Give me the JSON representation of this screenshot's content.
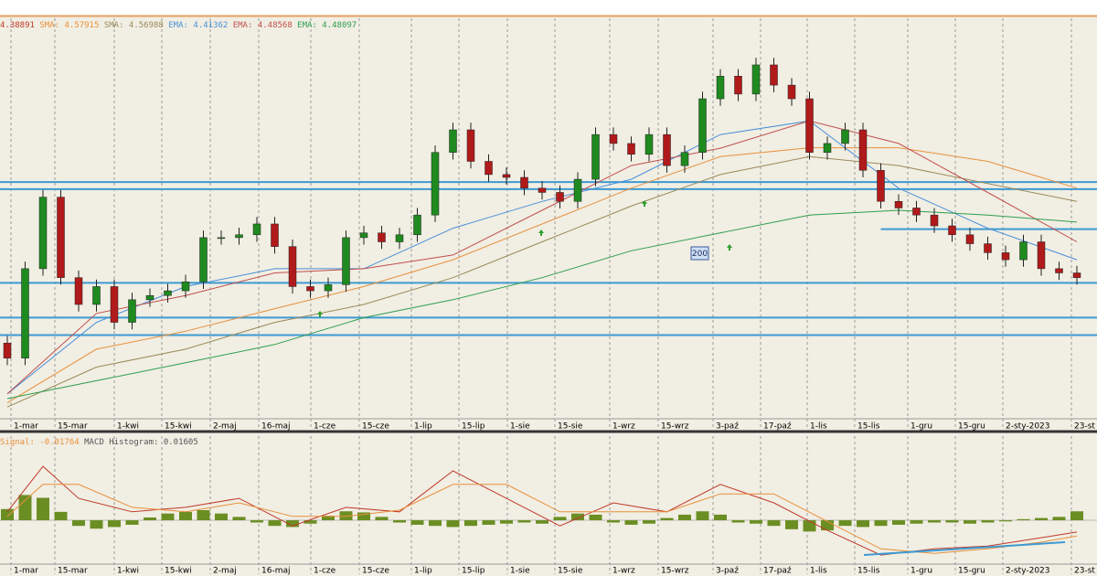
{
  "chart_data": [
    {
      "type": "candlestick",
      "header_close": {
        "text": "4.38891",
        "color": "#c0392b"
      },
      "ylim": [
        4.095,
        4.94
      ],
      "up_color": "#1f8a1f",
      "down_color": "#b01a1a",
      "open": [
        4.25,
        4.218,
        4.408,
        4.56,
        4.389,
        4.332,
        4.37,
        4.294,
        4.342,
        4.351,
        4.361,
        4.38,
        4.474,
        4.474,
        4.48,
        4.503,
        4.455,
        4.37,
        4.361,
        4.374,
        4.474,
        4.484,
        4.465,
        4.48,
        4.522,
        4.655,
        4.703,
        4.636,
        4.608,
        4.602,
        4.579,
        4.57,
        4.551,
        4.598,
        4.693,
        4.674,
        4.651,
        4.693,
        4.627,
        4.655,
        4.769,
        4.817,
        4.779,
        4.841,
        4.798,
        4.769,
        4.655,
        4.674,
        4.703,
        4.617,
        4.551,
        4.537,
        4.522,
        4.499,
        4.48,
        4.461,
        4.442,
        4.427,
        4.465,
        4.408,
        4.399
      ],
      "high": [
        4.265,
        4.423,
        4.575,
        4.575,
        4.404,
        4.385,
        4.385,
        4.357,
        4.366,
        4.376,
        4.395,
        4.489,
        4.489,
        4.495,
        4.518,
        4.518,
        4.47,
        4.385,
        4.389,
        4.489,
        4.499,
        4.499,
        4.495,
        4.537,
        4.67,
        4.718,
        4.718,
        4.651,
        4.623,
        4.617,
        4.594,
        4.585,
        4.613,
        4.708,
        4.708,
        4.689,
        4.708,
        4.708,
        4.67,
        4.784,
        4.832,
        4.832,
        4.856,
        4.856,
        4.813,
        4.784,
        4.689,
        4.718,
        4.718,
        4.632,
        4.566,
        4.552,
        4.537,
        4.514,
        4.495,
        4.476,
        4.457,
        4.48,
        4.48,
        4.423,
        4.414
      ],
      "low": [
        4.203,
        4.203,
        4.393,
        4.374,
        4.317,
        4.317,
        4.279,
        4.279,
        4.327,
        4.336,
        4.346,
        4.365,
        4.459,
        4.459,
        4.465,
        4.44,
        4.355,
        4.346,
        4.346,
        4.359,
        4.459,
        4.45,
        4.45,
        4.465,
        4.507,
        4.64,
        4.621,
        4.593,
        4.587,
        4.564,
        4.555,
        4.536,
        4.536,
        4.583,
        4.659,
        4.636,
        4.636,
        4.612,
        4.612,
        4.64,
        4.754,
        4.764,
        4.764,
        4.783,
        4.754,
        4.64,
        4.64,
        4.659,
        4.602,
        4.536,
        4.522,
        4.507,
        4.484,
        4.465,
        4.446,
        4.427,
        4.412,
        4.412,
        4.393,
        4.384,
        4.374
      ],
      "close": [
        4.218,
        4.408,
        4.56,
        4.389,
        4.332,
        4.37,
        4.294,
        4.342,
        4.351,
        4.361,
        4.38,
        4.474,
        4.474,
        4.48,
        4.503,
        4.455,
        4.37,
        4.361,
        4.374,
        4.474,
        4.484,
        4.465,
        4.48,
        4.522,
        4.655,
        4.703,
        4.636,
        4.608,
        4.602,
        4.579,
        4.57,
        4.551,
        4.598,
        4.693,
        4.674,
        4.651,
        4.693,
        4.627,
        4.655,
        4.769,
        4.817,
        4.779,
        4.841,
        4.798,
        4.769,
        4.655,
        4.674,
        4.703,
        4.617,
        4.551,
        4.537,
        4.522,
        4.499,
        4.48,
        4.461,
        4.442,
        4.427,
        4.465,
        4.408,
        4.399,
        4.389
      ],
      "moving_averages": [
        {
          "label": "SMA:",
          "value_text": "4.57915",
          "color": "#e8903c",
          "x": [
            0,
            5,
            10,
            15,
            20,
            25,
            30,
            35,
            40,
            45,
            50,
            55,
            60
          ],
          "values": [
            4.123,
            4.237,
            4.275,
            4.323,
            4.37,
            4.427,
            4.503,
            4.579,
            4.646,
            4.665,
            4.665,
            4.636,
            4.579
          ]
        },
        {
          "label": "SMA:",
          "value_text": "4.56988",
          "color": "#9a8a5a",
          "x": [
            0,
            5,
            10,
            15,
            20,
            25,
            30,
            35,
            40,
            45,
            50,
            55,
            60
          ],
          "values": [
            4.114,
            4.199,
            4.237,
            4.294,
            4.332,
            4.389,
            4.465,
            4.541,
            4.608,
            4.646,
            4.627,
            4.589,
            4.551
          ]
        },
        {
          "label": "EMA:",
          "value_text": "4.41362",
          "color": "#4a90d9",
          "x": [
            0,
            5,
            10,
            15,
            20,
            25,
            30,
            35,
            40,
            45,
            50,
            55,
            60
          ],
          "values": [
            4.142,
            4.294,
            4.37,
            4.408,
            4.408,
            4.494,
            4.551,
            4.598,
            4.693,
            4.722,
            4.579,
            4.494,
            4.427
          ]
        },
        {
          "label": "EMA:",
          "value_text": "4.48568",
          "color": "#c0504d",
          "x": [
            0,
            5,
            10,
            15,
            20,
            25,
            30,
            35,
            40,
            45,
            50,
            55,
            60
          ],
          "values": [
            4.142,
            4.313,
            4.351,
            4.399,
            4.408,
            4.437,
            4.532,
            4.627,
            4.664,
            4.722,
            4.674,
            4.57,
            4.465
          ]
        },
        {
          "label": "EMA:",
          "value_text": "4.48097",
          "color": "#2e9e4f",
          "x": [
            0,
            5,
            10,
            15,
            20,
            25,
            30,
            35,
            40,
            45,
            50,
            55,
            60
          ],
          "values": [
            4.132,
            4.17,
            4.208,
            4.247,
            4.304,
            4.342,
            4.389,
            4.446,
            4.484,
            4.522,
            4.532,
            4.522,
            4.507
          ]
        }
      ],
      "levels": {
        "color": "#3d9ad1",
        "values": [
          4.592,
          4.577,
          4.378,
          4.304,
          4.267
        ]
      },
      "short_level": {
        "value": 4.492,
        "from": 49
      },
      "annotation": "200",
      "date_labels": [
        "1-mar",
        "15-mar",
        "1-kwi",
        "15-kwi",
        "2-maj",
        "16-maj",
        "1-cze",
        "15-cze",
        "1-lip",
        "15-lip",
        "1-sie",
        "15-sie",
        "1-wrz",
        "15-wrz",
        "3-paź",
        "17-paź",
        "1-lis",
        "15-lis",
        "1-gru",
        "15-gru",
        "2-sty-2023",
        "23-st"
      ]
    },
    {
      "type": "macd",
      "ylim": [
        -0.07,
        0.15
      ],
      "signal_label": {
        "label": "Signal:",
        "value_text": "-0.01764"
      },
      "histogram_label": {
        "label": "MACD Histogram:",
        "value_text": "0.01605"
      },
      "histogram": {
        "color": "#6b8e23",
        "values": [
          0.02,
          0.045,
          0.04,
          0.015,
          -0.01,
          -0.015,
          -0.012,
          -0.008,
          0.005,
          0.012,
          0.015,
          0.018,
          0.012,
          0.006,
          -0.004,
          -0.01,
          -0.012,
          -0.006,
          0.008,
          0.016,
          0.014,
          0.006,
          -0.004,
          -0.008,
          -0.01,
          -0.012,
          -0.01,
          -0.008,
          -0.006,
          -0.004,
          -0.006,
          0.006,
          0.012,
          0.01,
          -0.004,
          -0.008,
          -0.006,
          0.004,
          0.01,
          0.016,
          0.01,
          -0.004,
          -0.006,
          -0.01,
          -0.016,
          -0.02,
          -0.018,
          -0.01,
          -0.012,
          -0.01,
          -0.008,
          -0.006,
          -0.004,
          -0.004,
          -0.006,
          -0.004,
          -0.002,
          0.002,
          0.004,
          0.006,
          0.016
        ]
      },
      "lines": [
        {
          "color": "#c0392b",
          "x": [
            0,
            2,
            4,
            7,
            10,
            13,
            16,
            19,
            22,
            25,
            28,
            31,
            34,
            37,
            40,
            43,
            46,
            49,
            52,
            55,
            58,
            60
          ],
          "values": [
            0.015,
            0.096,
            0.039,
            0.015,
            0.023,
            0.039,
            -0.01,
            0.023,
            0.015,
            0.088,
            0.039,
            -0.01,
            0.031,
            0.015,
            0.064,
            0.031,
            -0.018,
            -0.062,
            -0.051,
            -0.046,
            -0.031,
            -0.021
          ]
        },
        {
          "color": "#e8903c",
          "x": [
            0,
            2,
            4,
            7,
            10,
            13,
            16,
            19,
            22,
            25,
            28,
            31,
            34,
            37,
            40,
            43,
            46,
            49,
            52,
            55,
            58,
            60
          ],
          "values": [
            0.007,
            0.064,
            0.064,
            0.023,
            0.015,
            0.031,
            0.007,
            0.007,
            0.018,
            0.064,
            0.064,
            0.015,
            0.015,
            0.015,
            0.047,
            0.047,
            -0.002,
            -0.051,
            -0.059,
            -0.051,
            -0.039,
            -0.028
          ]
        }
      ]
    }
  ]
}
